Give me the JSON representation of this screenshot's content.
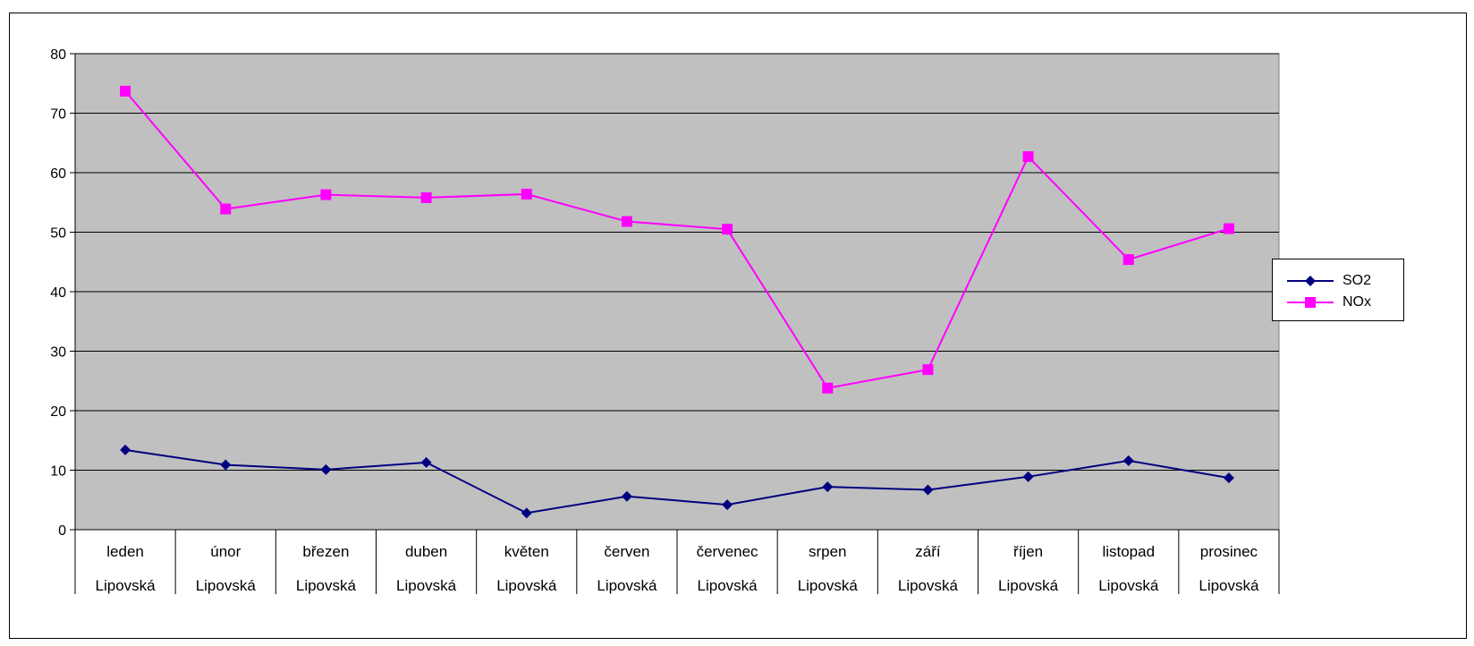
{
  "chart_data": {
    "type": "line",
    "title": "",
    "xlabel": "",
    "ylabel": "",
    "ylim": [
      0,
      80
    ],
    "yticks": [
      "0",
      "10",
      "20",
      "30",
      "40",
      "50",
      "60",
      "70",
      "80"
    ],
    "grid": true,
    "legend_position": "right",
    "categories": [
      "leden",
      "únor",
      "březen",
      "duben",
      "květen",
      "červen",
      "červenec",
      "srpen",
      "září",
      "říjen",
      "listopad",
      "prosinec"
    ],
    "sub_category": "Lipovská",
    "series": [
      {
        "name": "SO2",
        "color": "#000080",
        "marker": "diamond",
        "values": [
          13.4,
          10.9,
          10.1,
          11.3,
          2.8,
          5.6,
          4.2,
          7.2,
          6.7,
          8.9,
          11.6,
          8.7
        ]
      },
      {
        "name": "NOx",
        "color": "#ff00ff",
        "marker": "square",
        "values": [
          73.7,
          53.9,
          56.3,
          55.8,
          56.4,
          51.8,
          50.5,
          23.8,
          26.9,
          62.7,
          45.4,
          50.6
        ]
      }
    ],
    "plot_background": "#c0c0c0"
  }
}
